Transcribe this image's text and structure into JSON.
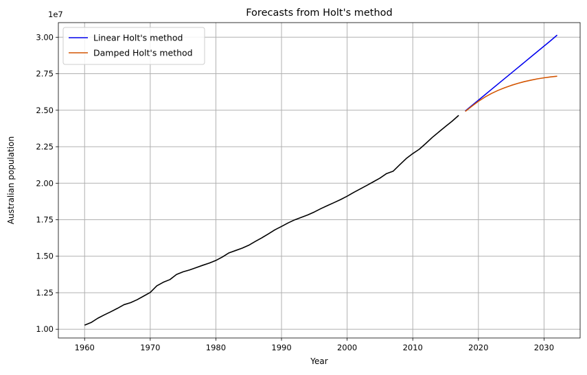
{
  "chart_data": {
    "type": "line",
    "title": "Forecasts from Holt's method",
    "xlabel": "Year",
    "ylabel": "Australian population",
    "y_offset_label": "1e7",
    "xlim": [
      1966.0,
      2035.5
    ],
    "ylim": [
      0.94,
      3.1
    ],
    "y_scale_factor": 10000000,
    "grid": true,
    "legend_position": "top-left",
    "x_ticks": [
      1960,
      1970,
      1980,
      1990,
      2000,
      2010,
      2020,
      2030
    ],
    "x_tick_labels": [
      "1960",
      "1970",
      "1980",
      "1990",
      "2000",
      "2010",
      "2020",
      "2030"
    ],
    "y_ticks": [
      1.0,
      1.25,
      1.5,
      1.75,
      2.0,
      2.25,
      2.5,
      2.75,
      3.0
    ],
    "y_tick_labels": [
      "1.00",
      "1.25",
      "1.50",
      "1.75",
      "2.00",
      "2.25",
      "2.50",
      "2.75",
      "3.00"
    ],
    "series": [
      {
        "color": "#000000",
        "x": [
          1960,
          1961,
          1962,
          1963,
          1964,
          1965,
          1966,
          1967,
          1968,
          1969,
          1970,
          1971,
          1972,
          1973,
          1974,
          1975,
          1976,
          1977,
          1978,
          1979,
          1980,
          1981,
          1982,
          1983,
          1984,
          1985,
          1986,
          1987,
          1988,
          1989,
          1990,
          1991,
          1992,
          1993,
          1994,
          1995,
          1996,
          1997,
          1998,
          1999,
          2000,
          2001,
          2002,
          2003,
          2004,
          2005,
          2006,
          2007,
          2008,
          2009,
          2010,
          2011,
          2012,
          2013,
          2014,
          2015,
          2016,
          2017
        ],
        "y": [
          1.028,
          1.046,
          1.075,
          1.098,
          1.12,
          1.143,
          1.168,
          1.182,
          1.202,
          1.227,
          1.252,
          1.297,
          1.322,
          1.34,
          1.375,
          1.393,
          1.406,
          1.422,
          1.438,
          1.453,
          1.471,
          1.495,
          1.523,
          1.539,
          1.555,
          1.575,
          1.601,
          1.626,
          1.653,
          1.681,
          1.704,
          1.728,
          1.749,
          1.766,
          1.783,
          1.803,
          1.826,
          1.847,
          1.867,
          1.888,
          1.911,
          1.937,
          1.961,
          1.985,
          2.01,
          2.035,
          2.066,
          2.082,
          2.126,
          2.169,
          2.203,
          2.233,
          2.273,
          2.315,
          2.352,
          2.389,
          2.425,
          2.465
        ]
      },
      {
        "name": "Linear Holt's method",
        "color": "#0000ee",
        "x": [
          2018,
          2019,
          2020,
          2021,
          2022,
          2023,
          2024,
          2025,
          2026,
          2027,
          2028,
          2029,
          2030,
          2031,
          2032
        ],
        "y": [
          2.495,
          2.532,
          2.569,
          2.606,
          2.643,
          2.68,
          2.717,
          2.754,
          2.791,
          2.828,
          2.865,
          2.902,
          2.939,
          2.976,
          3.015
        ]
      },
      {
        "name": "Damped Holt's method",
        "color": "#d35400",
        "x": [
          2018,
          2019,
          2020,
          2021,
          2022,
          2023,
          2024,
          2025,
          2026,
          2027,
          2028,
          2029,
          2030,
          2031,
          2032
        ],
        "y": [
          2.492,
          2.527,
          2.561,
          2.59,
          2.615,
          2.636,
          2.654,
          2.67,
          2.684,
          2.696,
          2.706,
          2.715,
          2.722,
          2.728,
          2.733
        ]
      }
    ]
  }
}
